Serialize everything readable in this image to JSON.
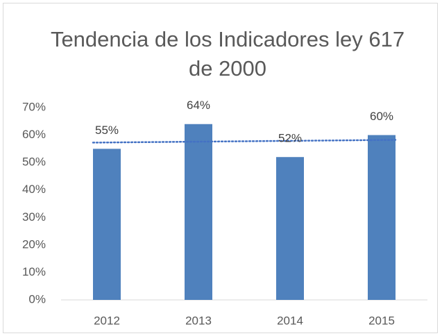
{
  "chart_data": {
    "type": "bar",
    "title": "Tendencia de los Indicadores ley 617 de 2000",
    "categories": [
      "2012",
      "2013",
      "2014",
      "2015"
    ],
    "values": [
      55,
      64,
      52,
      60
    ],
    "value_labels": [
      "55%",
      "64%",
      "52%",
      "60%"
    ],
    "color": "#4f81bd",
    "ylim": [
      0,
      70
    ],
    "yticks": [
      {
        "value": 0,
        "label": "0%"
      },
      {
        "value": 10,
        "label": "10%"
      },
      {
        "value": 20,
        "label": "20%"
      },
      {
        "value": 30,
        "label": "30%"
      },
      {
        "value": 40,
        "label": "40%"
      },
      {
        "value": 50,
        "label": "50%"
      },
      {
        "value": 60,
        "label": "60%"
      },
      {
        "value": 70,
        "label": "70%"
      }
    ],
    "grid": false,
    "trendline": {
      "type": "linear",
      "color": "#4472c4"
    }
  }
}
